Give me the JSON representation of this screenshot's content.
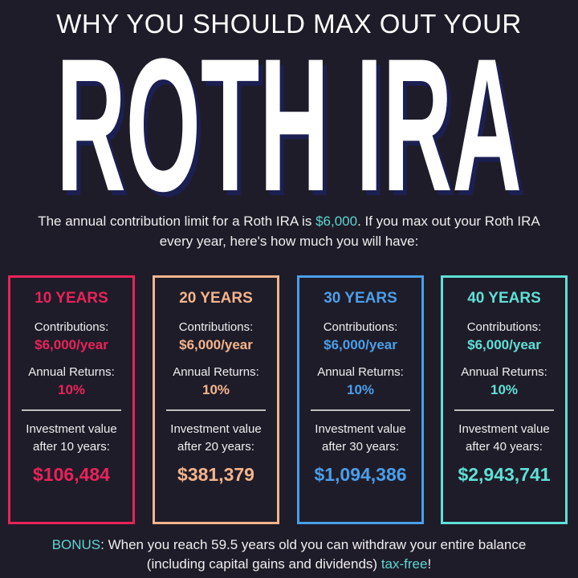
{
  "header": {
    "subtitle": "WHY YOU SHOULD MAX OUT YOUR",
    "title": "ROTH IRA"
  },
  "intro": {
    "before": "The annual contribution limit for a Roth IRA is ",
    "highlight": "$6,000",
    "after": ". If you max out your Roth IRA every year, here's how much you will have:"
  },
  "cards": [
    {
      "title": "10 YEARS",
      "contrib_label": "Contributions:",
      "contrib_value": "$6,000/year",
      "returns_label": "Annual Returns:",
      "returns_value": "10%",
      "inv_label": "Investment value",
      "after_label": "after 10 years:",
      "amount": "$106,484",
      "color": "#e8235a"
    },
    {
      "title": "20 YEARS",
      "contrib_label": "Contributions:",
      "contrib_value": "$6,000/year",
      "returns_label": "Annual Returns:",
      "returns_value": "10%",
      "inv_label": "Investment value",
      "after_label": "after 20 years:",
      "amount": "$381,379",
      "color": "#f3b48c"
    },
    {
      "title": "30 YEARS",
      "contrib_label": "Contributions:",
      "contrib_value": "$6,000/year",
      "returns_label": "Annual Returns:",
      "returns_value": "10%",
      "inv_label": "Investment value",
      "after_label": "after 30 years:",
      "amount": "$1,094,386",
      "color": "#4a9fea"
    },
    {
      "title": "40 YEARS",
      "contrib_label": "Contributions:",
      "contrib_value": "$6,000/year",
      "returns_label": "Annual Returns:",
      "returns_value": "10%",
      "inv_label": "Investment value",
      "after_label": "after 40 years:",
      "amount": "$2,943,741",
      "color": "#5fe0d6"
    }
  ],
  "bonus": {
    "label": "BONUS",
    "text": ": When you reach 59.5 years old you can withdraw your entire balance (including capital gains and dividends) ",
    "highlight": "tax-free",
    "end": "!"
  },
  "colors": {
    "background": "#1f1c29",
    "highlight": "#5fd6d0",
    "title_shadow": "#1c1f52"
  }
}
